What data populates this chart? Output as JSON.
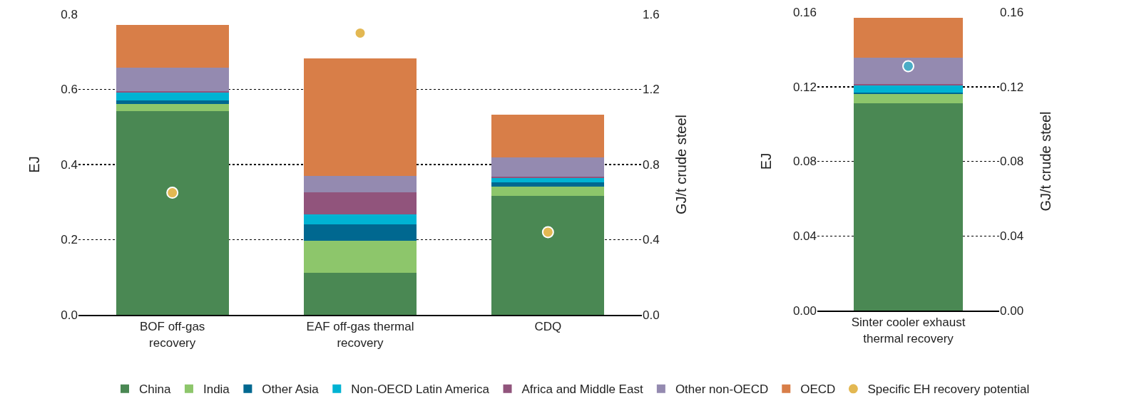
{
  "chart_data": [
    {
      "type": "bar",
      "stacked": true,
      "categories": [
        "BOF off-gas\nrecovery",
        "EAF off-gas thermal\nrecovery",
        "CDQ"
      ],
      "ylabel": "EJ",
      "y2label": "GJ/t crude steel",
      "ylim": [
        0,
        0.8
      ],
      "yticks": [
        {
          "value": 0,
          "label": "0.0"
        },
        {
          "value": 0.2,
          "label": "0.2"
        },
        {
          "value": 0.4,
          "label": "0.4"
        },
        {
          "value": 0.6,
          "label": "0.6"
        },
        {
          "value": 0.8,
          "label": "0.8"
        }
      ],
      "y2lim": [
        0,
        1.6
      ],
      "y2ticks": [
        {
          "value": 0,
          "label": "0.0"
        },
        {
          "value": 0.4,
          "label": "0.4"
        },
        {
          "value": 0.8,
          "label": "0.8"
        },
        {
          "value": 1.2,
          "label": "1.2"
        },
        {
          "value": 1.6,
          "label": "1.6"
        }
      ],
      "grid": "y",
      "legend": "bottom",
      "series": [
        {
          "name": "China",
          "color": "#4a8853",
          "values": [
            0.543,
            0.111,
            0.316
          ]
        },
        {
          "name": "India",
          "color": "#8dc66b",
          "values": [
            0.018,
            0.086,
            0.026
          ]
        },
        {
          "name": "Other Asia",
          "color": "#006890",
          "values": [
            0.01,
            0.043,
            0.01
          ]
        },
        {
          "name": "Non-OECD Latin America",
          "color": "#00b3d3",
          "values": [
            0.02,
            0.028,
            0.012
          ]
        },
        {
          "name": "Africa and Middle East",
          "color": "#91547c",
          "values": [
            0.004,
            0.058,
            0.003
          ]
        },
        {
          "name": "Other non-OECD",
          "color": "#948ab0",
          "values": [
            0.062,
            0.043,
            0.052
          ]
        },
        {
          "name": "OECD",
          "color": "#d87e48",
          "values": [
            0.115,
            0.314,
            0.113
          ]
        },
        {
          "name": "Specific EH recovery potential",
          "type": "scatter",
          "axis": "y2",
          "marker": "circle",
          "color": "#e3b852",
          "values": [
            0.65,
            1.5,
            0.44
          ]
        }
      ]
    },
    {
      "type": "bar",
      "stacked": true,
      "categories": [
        "Sinter cooler exhaust\nthermal recovery"
      ],
      "ylabel": "EJ",
      "y2label": "GJ/t crude steel",
      "ylim": [
        0,
        0.16
      ],
      "yticks": [
        {
          "value": 0,
          "label": "0.00"
        },
        {
          "value": 0.04,
          "label": "0.04"
        },
        {
          "value": 0.08,
          "label": "0.08"
        },
        {
          "value": 0.12,
          "label": "0.12"
        },
        {
          "value": 0.16,
          "label": "0.16"
        }
      ],
      "y2lim": [
        0,
        0.16
      ],
      "y2ticks": [
        {
          "value": 0,
          "label": "0.00"
        },
        {
          "value": 0.04,
          "label": "0.04"
        },
        {
          "value": 0.08,
          "label": "0.08"
        },
        {
          "value": 0.12,
          "label": "0.12"
        },
        {
          "value": 0.16,
          "label": "0.16"
        }
      ],
      "grid": "y",
      "legend": false,
      "series": [
        {
          "color": "#4a8853",
          "values": [
            0.111
          ]
        },
        {
          "color": "#8dc66b",
          "values": [
            0.005
          ]
        },
        {
          "color": "#006890",
          "values": [
            0.001
          ]
        },
        {
          "color": "#00b3d3",
          "values": [
            0.0035
          ]
        },
        {
          "color": "#91547c",
          "values": [
            0.001
          ]
        },
        {
          "color": "#948ab0",
          "values": [
            0.014
          ]
        },
        {
          "color": "#d87e48",
          "values": [
            0.0215
          ]
        },
        {
          "type": "scatter",
          "axis": "y2",
          "marker": "circle",
          "colors": [
            "#4bacc6"
          ],
          "values": [
            0.131
          ]
        }
      ]
    }
  ]
}
